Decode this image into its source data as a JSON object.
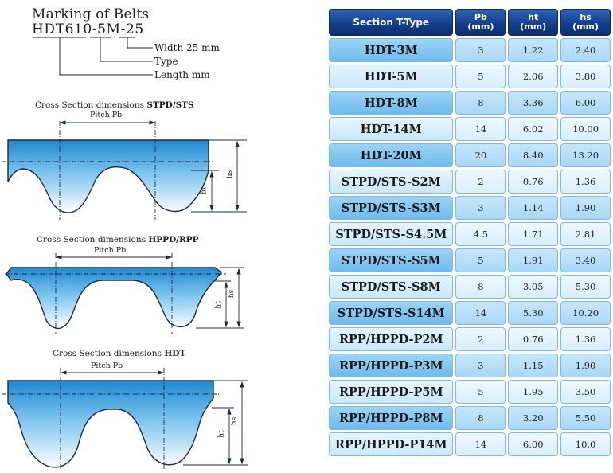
{
  "marking": {
    "title": "Marking of Belts",
    "code": "HDT610-5M-25",
    "width_label": "Width 25 mm",
    "type_label": "Type",
    "length_label": "Length mm"
  },
  "diagrams": [
    {
      "caption_prefix": "Cross Section dimensions",
      "caption_profile": "STPD/STS",
      "pitch_label": "Pitch Pb",
      "ht_label": "ht",
      "hs_label": "hs"
    },
    {
      "caption_prefix": "Cross Section dimensions",
      "caption_profile": "HPPD/RPP",
      "pitch_label": "Pitch Pb",
      "ht_label": "ht",
      "hs_label": "hs"
    },
    {
      "caption_prefix": "Cross Section dimensions",
      "caption_profile": "HDT",
      "pitch_label": "Pitch Pb",
      "ht_label": "ht",
      "hs_label": "hs"
    }
  ],
  "table": {
    "headers": [
      "Section T-Type",
      "Pb\n(mm)",
      "ht\n(mm)",
      "hs\n(mm)"
    ],
    "rows": [
      [
        "HDT-3M",
        "3",
        "1.22",
        "2.40"
      ],
      [
        "HDT-5M",
        "5",
        "2.06",
        "3.80"
      ],
      [
        "HDT-8M",
        "8",
        "3.36",
        "6.00"
      ],
      [
        "HDT-14M",
        "14",
        "6.02",
        "10.00"
      ],
      [
        "HDT-20M",
        "20",
        "8.40",
        "13.20"
      ],
      [
        "STPD/STS-S2M",
        "2",
        "0.76",
        "1.36"
      ],
      [
        "STPD/STS-S3M",
        "3",
        "1.14",
        "1.90"
      ],
      [
        "STPD/STS-S4.5M",
        "4.5",
        "1.71",
        "2.81"
      ],
      [
        "STPD/STS-S5M",
        "5",
        "1.91",
        "3.40"
      ],
      [
        "STPD/STS-S8M",
        "8",
        "3.05",
        "5.30"
      ],
      [
        "STPD/STS-S14M",
        "14",
        "5.30",
        "10.20"
      ],
      [
        "RPP/HPPD-P2M",
        "2",
        "0.76",
        "1.36"
      ],
      [
        "RPP/HPPD-P3M",
        "3",
        "1.15",
        "1.90"
      ],
      [
        "RPP/HPPD-P5M",
        "5",
        "1.95",
        "3.50"
      ],
      [
        "RPP/HPPD-P8M",
        "8",
        "3.20",
        "5.50"
      ],
      [
        "RPP/HPPD-P14M",
        "14",
        "6.00",
        "10.0"
      ]
    ]
  },
  "colors": {
    "belt_dark": "#2b93d6",
    "belt_light": "#ffffff",
    "header_bg": "#123c8a"
  }
}
